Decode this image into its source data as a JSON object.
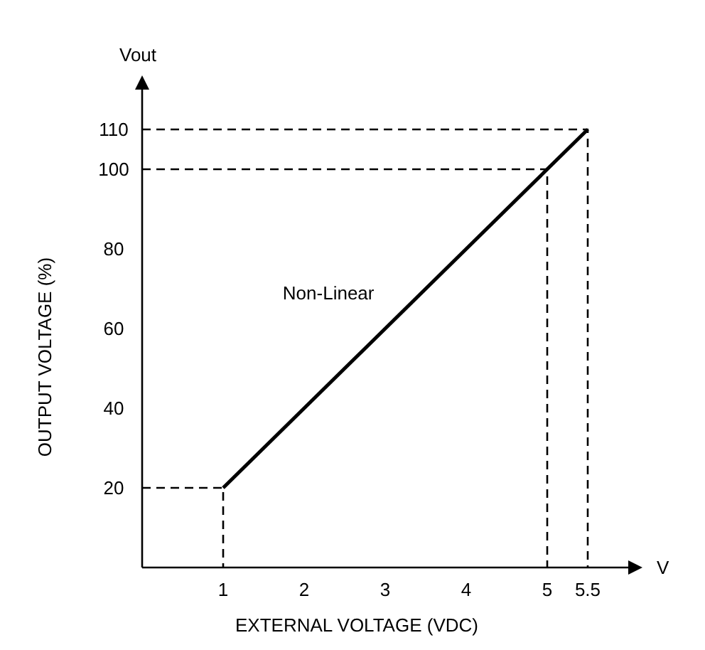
{
  "chart_data": {
    "type": "line",
    "xlabel": "EXTERNAL VOLTAGE (VDC)",
    "ylabel": "OUTPUT VOLTAGE (%)",
    "xlim": [
      0,
      6
    ],
    "ylim": [
      0,
      120
    ],
    "xticks": [
      1,
      2,
      3,
      4,
      5,
      5.5
    ],
    "yticks": [
      20,
      40,
      60,
      80,
      100,
      110
    ],
    "grid": false,
    "marker": "none",
    "series": [
      {
        "x": [
          1,
          5.5
        ],
        "values": [
          20,
          110
        ],
        "color": "#000000",
        "line_style": "solid"
      },
      {
        "x": [
          0,
          1,
          1
        ],
        "values": [
          20,
          20,
          0
        ],
        "color": "#000000",
        "line_style": "dashed"
      },
      {
        "x": [
          0,
          5,
          5
        ],
        "values": [
          100,
          100,
          0
        ],
        "color": "#000000",
        "line_style": "dashed"
      },
      {
        "x": [
          0,
          5.5,
          5.5
        ],
        "values": [
          110,
          110,
          0
        ],
        "color": "#000000",
        "line_style": "dashed"
      }
    ],
    "annotations": [
      "Vout",
      "V",
      "Non-Linear"
    ]
  }
}
